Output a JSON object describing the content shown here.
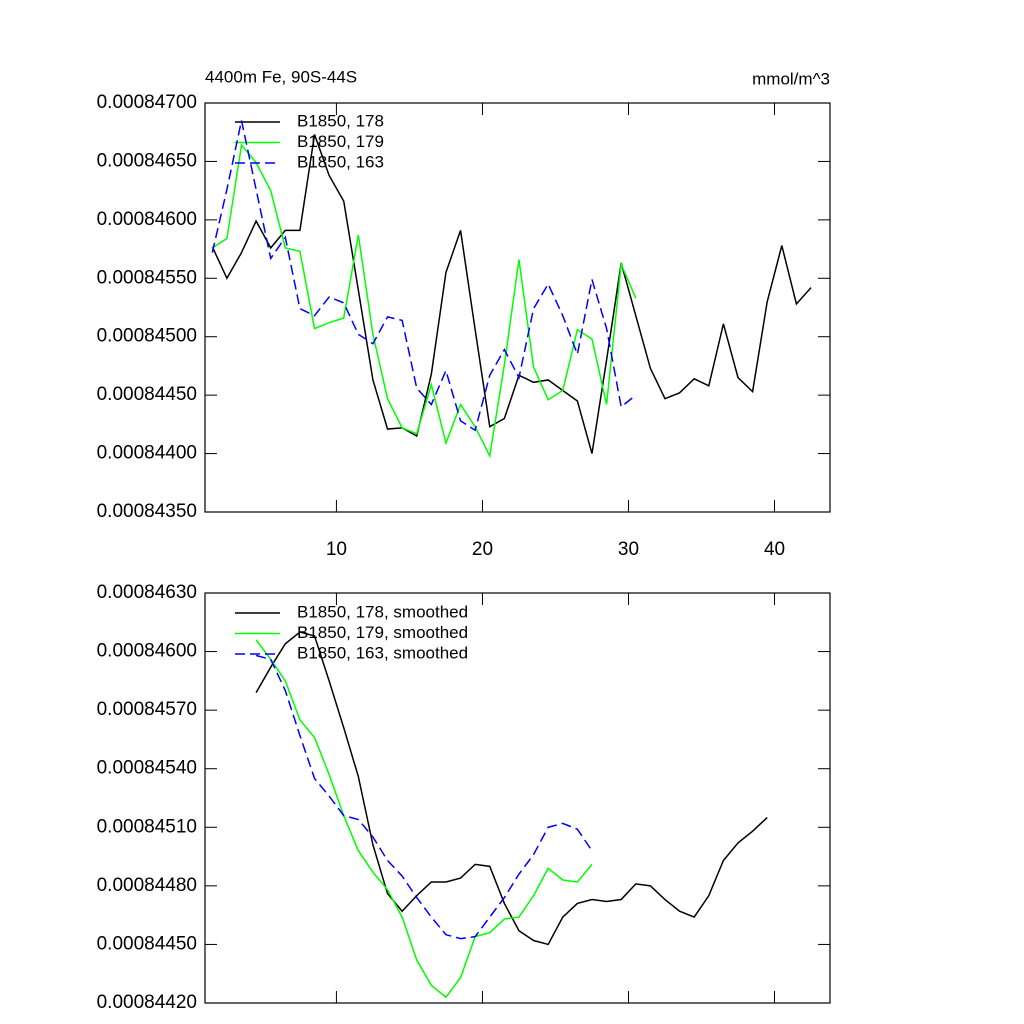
{
  "chart_data": [
    {
      "type": "line",
      "title": "4400m Fe, 90S-44S",
      "units": "mmol/m^3",
      "xlim": [
        1,
        43.8
      ],
      "xticks": [
        10,
        20,
        30,
        40
      ],
      "ylim": [
        0.0008435,
        0.000847
      ],
      "yticks": [
        {
          "value": 0.0008435,
          "label": "0.00084350"
        },
        {
          "value": 0.000844,
          "label": "0.00084400"
        },
        {
          "value": 0.0008445,
          "label": "0.00084450"
        },
        {
          "value": 0.000845,
          "label": "0.00084500"
        },
        {
          "value": 0.0008455,
          "label": "0.00084550"
        },
        {
          "value": 0.000846,
          "label": "0.00084600"
        },
        {
          "value": 0.0008465,
          "label": "0.00084650"
        },
        {
          "value": 0.000847,
          "label": "0.00084700"
        }
      ],
      "series": [
        {
          "name": "B1850, 178",
          "color": "#000000",
          "dash": false,
          "x": [
            1.5,
            2.5,
            3.5,
            4.5,
            5.5,
            6.5,
            7.5,
            8.5,
            9.5,
            10.5,
            11.5,
            12.5,
            13.5,
            14.5,
            15.5,
            16.5,
            17.5,
            18.5,
            19.5,
            20.5,
            21.5,
            22.5,
            23.5,
            24.5,
            25.5,
            26.5,
            27.5,
            28.5,
            29.5,
            30.5,
            31.5,
            32.5,
            33.5,
            34.5,
            35.5,
            36.5,
            37.5,
            38.5,
            39.5,
            40.5,
            41.5,
            42.5
          ],
          "values": [
            0.00084577,
            0.0008455,
            0.00084572,
            0.00084599,
            0.00084576,
            0.00084591,
            0.00084591,
            0.00084673,
            0.00084638,
            0.00084616,
            0.0008454,
            0.00084463,
            0.00084421,
            0.00084422,
            0.00084415,
            0.00084468,
            0.00084555,
            0.00084591,
            0.00084506,
            0.00084423,
            0.0008443,
            0.00084467,
            0.00084461,
            0.00084463,
            0.00084454,
            0.00084445,
            0.000844,
            0.0008448,
            0.00084563,
            0.00084518,
            0.00084473,
            0.00084447,
            0.00084452,
            0.00084464,
            0.00084458,
            0.00084511,
            0.00084465,
            0.00084453,
            0.0008453,
            0.00084578,
            0.00084528,
            0.00084542
          ]
        },
        {
          "name": "B1850, 179",
          "color": "#00ff00",
          "dash": false,
          "x": [
            1.5,
            2.5,
            3.5,
            4.5,
            5.5,
            6.5,
            7.5,
            8.5,
            9.5,
            10.5,
            11.5,
            12.5,
            13.5,
            14.5,
            15.5,
            16.5,
            17.5,
            18.5,
            19.5,
            20.5,
            21.5,
            22.5,
            23.5,
            24.5,
            25.5,
            26.5,
            27.5,
            28.5,
            29.5,
            30.5
          ],
          "values": [
            0.00084576,
            0.00084584,
            0.00084664,
            0.00084649,
            0.00084625,
            0.00084576,
            0.00084573,
            0.00084507,
            0.00084512,
            0.00084516,
            0.00084587,
            0.00084502,
            0.00084447,
            0.00084422,
            0.00084417,
            0.00084459,
            0.00084409,
            0.00084442,
            0.00084423,
            0.00084398,
            0.00084476,
            0.00084566,
            0.00084474,
            0.00084446,
            0.00084454,
            0.00084506,
            0.00084498,
            0.00084442,
            0.00084562,
            0.00084533
          ]
        },
        {
          "name": "B1850, 163",
          "color": "#0000ff",
          "dash": true,
          "x": [
            1.5,
            2.5,
            3.5,
            4.5,
            5.5,
            6.5,
            7.5,
            8.5,
            9.5,
            10.5,
            11.5,
            12.5,
            13.5,
            14.5,
            15.5,
            16.5,
            17.5,
            18.5,
            19.5,
            20.5,
            21.5,
            22.5,
            23.5,
            24.5,
            25.5,
            26.5,
            27.5,
            28.5,
            29.5,
            30.5
          ],
          "values": [
            0.00084572,
            0.00084626,
            0.00084685,
            0.00084626,
            0.00084567,
            0.00084585,
            0.00084524,
            0.00084518,
            0.00084534,
            0.00084529,
            0.00084502,
            0.00084494,
            0.00084517,
            0.00084514,
            0.00084456,
            0.00084442,
            0.00084471,
            0.00084428,
            0.0008442,
            0.00084467,
            0.00084489,
            0.00084465,
            0.00084524,
            0.00084545,
            0.00084518,
            0.00084485,
            0.00084549,
            0.00084507,
            0.0008444,
            0.0008445
          ]
        }
      ]
    },
    {
      "type": "line",
      "xlim": [
        1,
        43.8
      ],
      "xticks": [
        10,
        20,
        30,
        40
      ],
      "ylim": [
        0.0008442,
        0.0008463
      ],
      "yticks": [
        {
          "value": 0.0008442,
          "label": "0.00084420"
        },
        {
          "value": 0.0008445,
          "label": "0.00084450"
        },
        {
          "value": 0.0008448,
          "label": "0.00084480"
        },
        {
          "value": 0.0008451,
          "label": "0.00084510"
        },
        {
          "value": 0.0008454,
          "label": "0.00084540"
        },
        {
          "value": 0.0008457,
          "label": "0.00084570"
        },
        {
          "value": 0.000846,
          "label": "0.00084600"
        },
        {
          "value": 0.0008463,
          "label": "0.00084630"
        }
      ],
      "series": [
        {
          "name": "B1850, 178, smoothed",
          "color": "#000000",
          "dash": false,
          "x": [
            4.5,
            5.5,
            6.5,
            7.5,
            8.5,
            9.5,
            10.5,
            11.5,
            12.5,
            13.5,
            14.5,
            15.5,
            16.5,
            17.5,
            18.5,
            19.5,
            20.5,
            21.5,
            22.5,
            23.5,
            24.5,
            25.5,
            26.5,
            27.5,
            28.5,
            29.5,
            30.5,
            31.5,
            32.5,
            33.5,
            34.5,
            35.5,
            36.5,
            37.5,
            38.5,
            39.5
          ],
          "values": [
            0.00084579,
            0.00084592,
            0.00084604,
            0.0008461,
            0.00084608,
            0.00084585,
            0.00084561,
            0.00084536,
            0.00084501,
            0.00084476,
            0.00084467,
            0.00084475,
            0.00084482,
            0.00084482,
            0.00084484,
            0.00084491,
            0.0008449,
            0.00084471,
            0.00084457,
            0.00084452,
            0.0008445,
            0.00084464,
            0.00084471,
            0.00084473,
            0.00084472,
            0.00084473,
            0.00084481,
            0.0008448,
            0.00084473,
            0.00084467,
            0.00084464,
            0.00084475,
            0.00084493,
            0.00084502,
            0.00084508,
            0.00084515
          ]
        },
        {
          "name": "B1850, 179, smoothed",
          "color": "#00ff00",
          "dash": false,
          "x": [
            4.5,
            5.5,
            6.5,
            7.5,
            8.5,
            9.5,
            10.5,
            11.5,
            12.5,
            13.5,
            14.5,
            15.5,
            16.5,
            17.5,
            18.5,
            19.5,
            20.5,
            21.5,
            22.5,
            23.5,
            24.5,
            25.5,
            26.5,
            27.5
          ],
          "values": [
            0.00084606,
            0.00084596,
            0.00084585,
            0.00084565,
            0.00084556,
            0.00084537,
            0.00084516,
            0.00084498,
            0.00084487,
            0.00084478,
            0.00084464,
            0.00084442,
            0.00084429,
            0.00084423,
            0.00084433,
            0.00084454,
            0.00084456,
            0.00084463,
            0.00084464,
            0.00084475,
            0.00084489,
            0.00084483,
            0.00084482,
            0.00084491
          ]
        },
        {
          "name": "B1850, 163, smoothed",
          "color": "#0000ff",
          "dash": true,
          "x": [
            4.5,
            5.5,
            6.5,
            7.5,
            8.5,
            9.5,
            10.5,
            11.5,
            12.5,
            13.5,
            14.5,
            15.5,
            16.5,
            17.5,
            18.5,
            19.5,
            20.5,
            21.5,
            22.5,
            23.5,
            24.5,
            25.5,
            26.5,
            27.5
          ],
          "values": [
            0.00084598,
            0.00084596,
            0.0008458,
            0.00084557,
            0.00084535,
            0.00084526,
            0.00084516,
            0.00084514,
            0.00084505,
            0.00084493,
            0.00084485,
            0.00084474,
            0.00084464,
            0.00084455,
            0.00084453,
            0.00084454,
            0.00084464,
            0.00084474,
            0.00084486,
            0.00084496,
            0.0008451,
            0.00084512,
            0.00084509,
            0.00084498
          ]
        }
      ]
    }
  ]
}
